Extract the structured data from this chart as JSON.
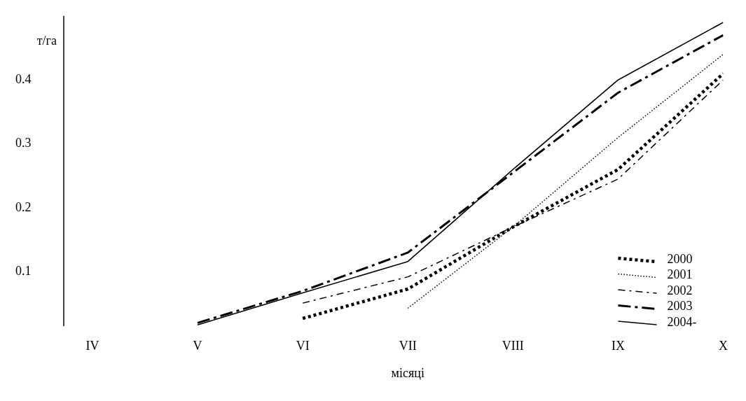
{
  "chart_data": {
    "type": "line",
    "ylabel": "т/га",
    "xlabel": "місяці",
    "categories": [
      "IV",
      "V",
      "VI",
      "VII",
      "VIII",
      "IX",
      "X"
    ],
    "ylim": [
      0.015,
      0.5
    ],
    "yticks": [
      0.1,
      0.2,
      0.3,
      0.4
    ],
    "grid": false,
    "legend": "bottom right",
    "marker": "none",
    "series": [
      {
        "name": "2000",
        "color": "#000000",
        "line_style": "dotted",
        "values": [
          null,
          null,
          0.027,
          0.073,
          0.17,
          0.26,
          0.41
        ]
      },
      {
        "name": "2001",
        "color": "#000000",
        "line_style": "dotted",
        "values": [
          null,
          null,
          null,
          0.043,
          0.17,
          0.31,
          0.44
        ]
      },
      {
        "name": "2002",
        "color": "#000000",
        "line_style": "dashed",
        "values": [
          null,
          null,
          0.051,
          0.092,
          0.17,
          0.245,
          0.4
        ]
      },
      {
        "name": "2003",
        "color": "#000000",
        "line_style": "dashed",
        "values": [
          null,
          0.02,
          0.07,
          0.13,
          0.255,
          0.38,
          0.47
        ]
      },
      {
        "name": "2004-",
        "color": "#000000",
        "line_style": "solid",
        "values": [
          null,
          0.017,
          0.067,
          0.116,
          0.26,
          0.4,
          0.49
        ]
      }
    ]
  }
}
